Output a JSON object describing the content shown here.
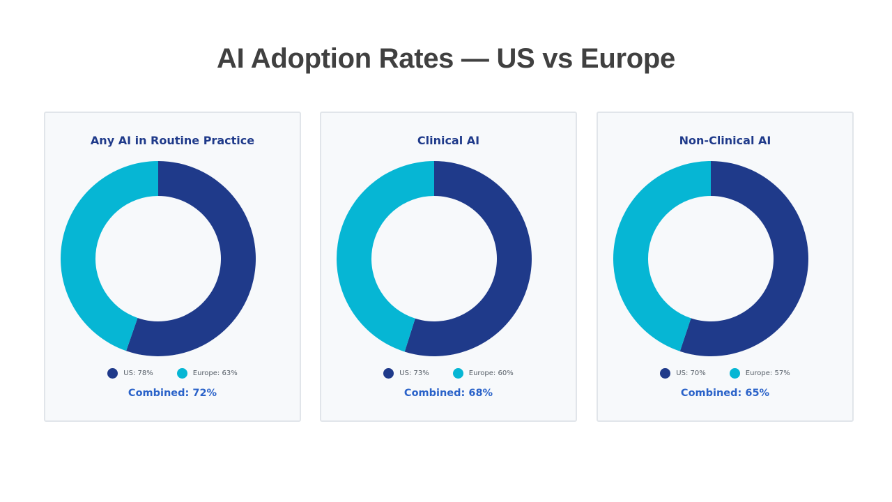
{
  "page": {
    "title": "AI Adoption Rates — US vs Europe"
  },
  "colors": {
    "us": "#1f3a8a",
    "europe": "#06b6d4",
    "combined_text": "#2b63c9",
    "card_title": "#1f3a8a"
  },
  "chart_data": [
    {
      "type": "pie",
      "variant": "donut",
      "title": "Any AI in Routine Practice",
      "series": [
        {
          "name": "US",
          "value": 78,
          "label": "US: 78%"
        },
        {
          "name": "Europe",
          "value": 63,
          "label": "Europe: 63%"
        }
      ],
      "combined": 72,
      "combined_label": "Combined: 72%",
      "legend": "bottom"
    },
    {
      "type": "pie",
      "variant": "donut",
      "title": "Clinical AI",
      "series": [
        {
          "name": "US",
          "value": 73,
          "label": "US: 73%"
        },
        {
          "name": "Europe",
          "value": 60,
          "label": "Europe: 60%"
        }
      ],
      "combined": 68,
      "combined_label": "Combined: 68%",
      "legend": "bottom"
    },
    {
      "type": "pie",
      "variant": "donut",
      "title": "Non-Clinical AI",
      "series": [
        {
          "name": "US",
          "value": 70,
          "label": "US: 70%"
        },
        {
          "name": "Europe",
          "value": 57,
          "label": "Europe: 57%"
        }
      ],
      "combined": 65,
      "combined_label": "Combined: 65%",
      "legend": "bottom"
    }
  ]
}
